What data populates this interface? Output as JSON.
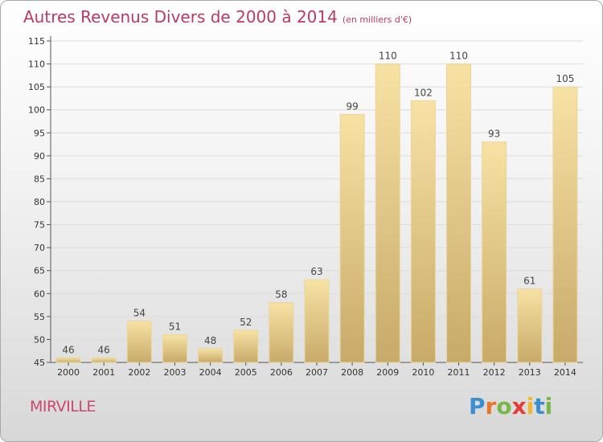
{
  "header": {
    "title": "Autres Revenus Divers de 2000 à 2014",
    "subtitle": "(en milliers d'€)"
  },
  "footer": {
    "city": "MIRVILLE",
    "logo_letters": [
      "P",
      "r",
      "o",
      "x",
      "i",
      "t",
      "i"
    ],
    "logo_colors": [
      "#3a8fd0",
      "#e8762b",
      "#7ab648",
      "#e43b3b",
      "#f2b630",
      "#3a8fd0",
      "#7ab648"
    ]
  },
  "chart_data": {
    "type": "bar",
    "title": "Autres Revenus Divers de 2000 à 2014",
    "subtitle": "(en milliers d'€)",
    "categories": [
      "2000",
      "2001",
      "2002",
      "2003",
      "2004",
      "2005",
      "2006",
      "2007",
      "2008",
      "2009",
      "2010",
      "2011",
      "2012",
      "2013",
      "2014"
    ],
    "values": [
      46,
      46,
      54,
      51,
      48,
      52,
      58,
      63,
      99,
      110,
      102,
      110,
      93,
      61,
      105
    ],
    "yticks": [
      45,
      50,
      55,
      60,
      65,
      70,
      75,
      80,
      85,
      90,
      95,
      100,
      105,
      110,
      115
    ],
    "ylim": [
      45,
      115
    ],
    "grid": true,
    "bar_color_top": "#f7e2a4",
    "bar_color_bottom": "#c8aa6a"
  }
}
